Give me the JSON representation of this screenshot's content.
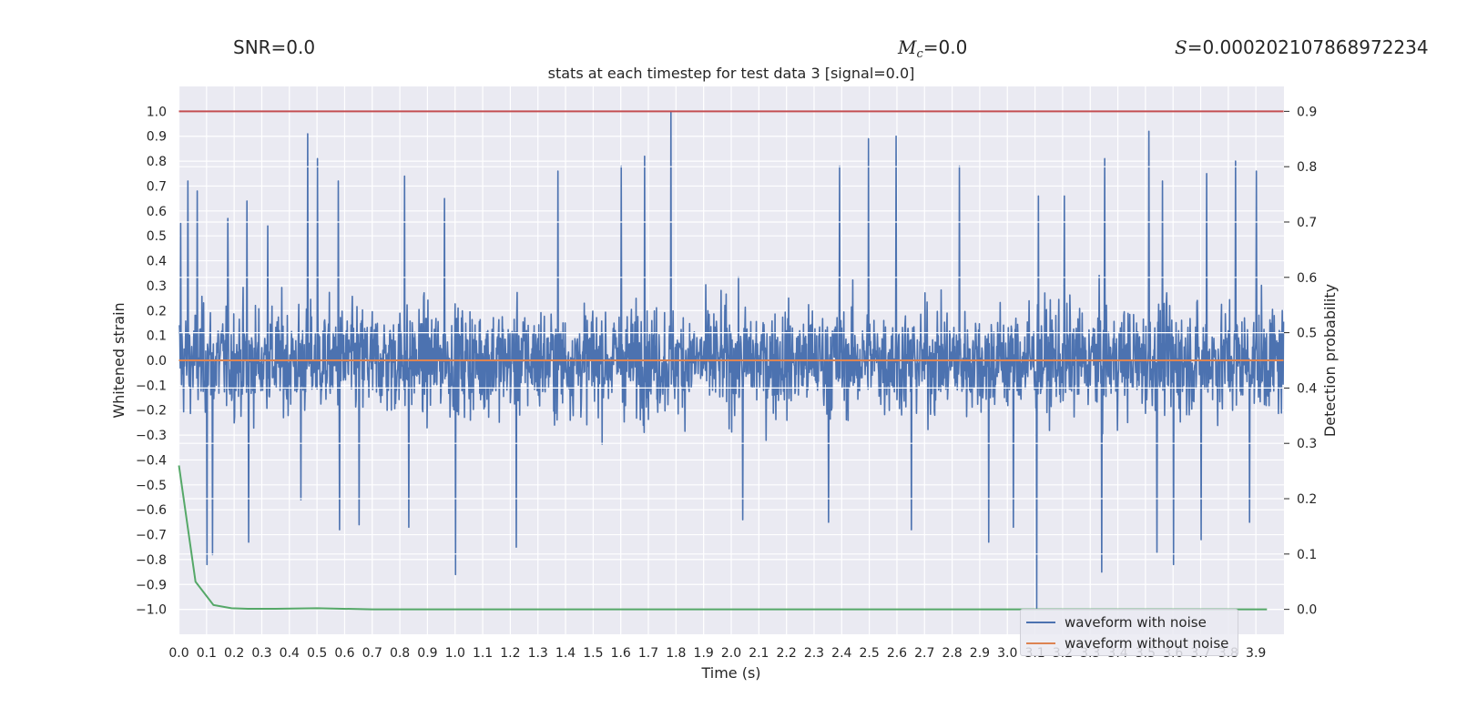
{
  "header": {
    "snr_label": "SNR=0.0",
    "mc_symbol": "M",
    "mc_subscript": "c",
    "mc_value": "=0.0",
    "s_symbol": "S",
    "s_value": "=0.000202107868972234"
  },
  "chart_data": {
    "type": "line",
    "title": "stats at each timestep for test data 3 [signal=0.0]",
    "xlabel": "Time (s)",
    "ylabel_left": "Whitened strain",
    "ylabel_right": "Detection probability",
    "xlim": [
      0.0,
      4.0
    ],
    "ylim_left": [
      -1.1,
      1.1
    ],
    "ylim_right": [
      -0.045,
      0.945
    ],
    "grid": true,
    "legend_position": "lower right",
    "x_ticks": [
      "0.0",
      "0.1",
      "0.2",
      "0.3",
      "0.4",
      "0.5",
      "0.6",
      "0.7",
      "0.8",
      "0.9",
      "1.0",
      "1.1",
      "1.2",
      "1.3",
      "1.4",
      "1.5",
      "1.6",
      "1.7",
      "1.8",
      "1.9",
      "2.0",
      "2.1",
      "2.2",
      "2.3",
      "2.4",
      "2.5",
      "2.6",
      "2.7",
      "2.8",
      "2.9",
      "3.0",
      "3.1",
      "3.2",
      "3.3",
      "3.4",
      "3.5",
      "3.6",
      "3.7",
      "3.8",
      "3.9"
    ],
    "y_ticks_left": [
      "1.0",
      "0.9",
      "0.8",
      "0.7",
      "0.6",
      "0.5",
      "0.4",
      "0.3",
      "0.2",
      "0.1",
      "0.0",
      "−0.1",
      "−0.2",
      "−0.3",
      "−0.4",
      "−0.5",
      "−0.6",
      "−0.7",
      "−0.8",
      "−0.9",
      "−1.0"
    ],
    "y_ticks_right": [
      "0.9",
      "0.8",
      "0.7",
      "0.6",
      "0.5",
      "0.4",
      "0.3",
      "0.2",
      "0.1",
      "0.0"
    ],
    "series": [
      {
        "name": "waveform with noise",
        "axis": "left",
        "color": "#4c72b0",
        "peaks_x": [
          0.005,
          0.03,
          0.065,
          0.12,
          0.175,
          0.245,
          0.32,
          0.465,
          0.5,
          0.575,
          0.815,
          0.96,
          1.37,
          1.6,
          1.685,
          1.78,
          2.39,
          2.495,
          2.595,
          2.825,
          3.11,
          3.205,
          3.35,
          3.51,
          3.56,
          3.72,
          3.825,
          3.9
        ],
        "peaks_y": [
          0.55,
          0.72,
          0.68,
          0.64,
          0.57,
          0.64,
          0.54,
          0.91,
          0.81,
          0.72,
          0.74,
          0.65,
          0.76,
          0.78,
          0.82,
          1.0,
          0.78,
          0.89,
          0.9,
          0.78,
          0.66,
          0.66,
          0.81,
          0.92,
          0.72,
          0.75,
          0.8,
          0.76
        ],
        "troughs_x": [
          0.1,
          0.12,
          0.25,
          0.44,
          0.58,
          0.65,
          0.83,
          1.0,
          1.22,
          2.04,
          2.35,
          2.65,
          2.93,
          3.02,
          3.105,
          3.34,
          3.54,
          3.6,
          3.7,
          3.875
        ],
        "troughs_y": [
          -0.82,
          -0.78,
          -0.73,
          -0.56,
          -0.68,
          -0.66,
          -0.67,
          -0.86,
          -0.75,
          -0.64,
          -0.65,
          -0.68,
          -0.73,
          -0.67,
          -1.0,
          -0.85,
          -0.77,
          -0.82,
          -0.72,
          -0.65
        ],
        "typical_envelope": [
          -0.5,
          0.5
        ]
      },
      {
        "name": "waveform without noise",
        "axis": "left",
        "color": "#dd8452",
        "x": [
          0.0,
          4.0
        ],
        "y": [
          0.0,
          0.0
        ]
      },
      {
        "name": "",
        "axis": "right",
        "color": "#55a868",
        "x": [
          0.0,
          0.06,
          0.125,
          0.19,
          0.25,
          0.35,
          0.5,
          0.7,
          1.0,
          2.0,
          3.0,
          3.94
        ],
        "y": [
          0.26,
          0.05,
          0.008,
          0.002,
          0.001,
          0.001,
          0.002,
          0.0,
          0.0,
          0.0,
          0.0,
          0.0
        ]
      },
      {
        "name": "",
        "axis": "right",
        "color": "#c44e52",
        "x": [
          0.0,
          4.0
        ],
        "y": [
          0.9,
          0.9
        ]
      }
    ]
  }
}
